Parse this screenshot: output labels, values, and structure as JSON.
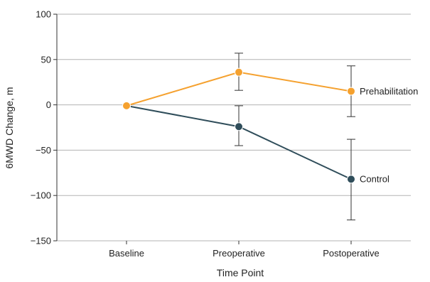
{
  "chart_data": {
    "type": "line",
    "xlabel": "Time Point",
    "ylabel": "6MWD Change, m",
    "categories": [
      "Baseline",
      "Preoperative",
      "Postoperative"
    ],
    "ylim": [
      -150,
      100
    ],
    "yticks": [
      100,
      50,
      0,
      -50,
      -100,
      -150
    ],
    "ytick_labels": [
      "100",
      "50",
      "0",
      "−50",
      "−100",
      "−150"
    ],
    "grid": "horizontal",
    "legend": "inline labels at end of each line",
    "series": [
      {
        "name": "Prehabilitation",
        "color": "#F5A12F",
        "values": [
          -1,
          36,
          15
        ],
        "error_low": [
          null,
          16,
          -13
        ],
        "error_high": [
          null,
          57,
          43
        ]
      },
      {
        "name": "Control",
        "color": "#2F4D5A",
        "values": [
          -1,
          -24,
          -82
        ],
        "error_low": [
          null,
          -45,
          -127
        ],
        "error_high": [
          null,
          -1,
          -38
        ]
      }
    ]
  }
}
